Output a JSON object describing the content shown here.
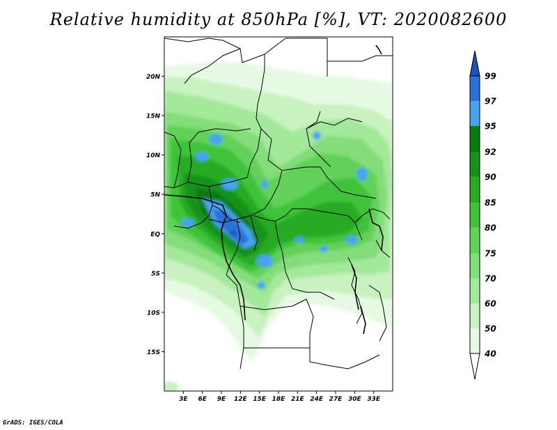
{
  "title": "Relative humidity at 850hPa [%], VT: 2020082600",
  "credit": "GrADS: IGES/COLA",
  "map": {
    "lon_range": [
      0,
      36
    ],
    "lat_range": [
      -20,
      25
    ],
    "lat_ticks": [
      {
        "value": 20,
        "label": "20N"
      },
      {
        "value": 15,
        "label": "15N"
      },
      {
        "value": 10,
        "label": "10N"
      },
      {
        "value": 5,
        "label": "5N"
      },
      {
        "value": 0,
        "label": "EQ"
      },
      {
        "value": -5,
        "label": "5S"
      },
      {
        "value": -10,
        "label": "10S"
      },
      {
        "value": -15,
        "label": "15S"
      }
    ],
    "lon_ticks": [
      {
        "value": 3,
        "label": "3E"
      },
      {
        "value": 6,
        "label": "6E"
      },
      {
        "value": 9,
        "label": "9E"
      },
      {
        "value": 12,
        "label": "12E"
      },
      {
        "value": 15,
        "label": "15E"
      },
      {
        "value": 18,
        "label": "18E"
      },
      {
        "value": 21,
        "label": "21E"
      },
      {
        "value": 24,
        "label": "24E"
      },
      {
        "value": 27,
        "label": "27E"
      },
      {
        "value": 30,
        "label": "30E"
      },
      {
        "value": 33,
        "label": "33E"
      }
    ]
  },
  "colorbar": {
    "levels": [
      "40",
      "50",
      "60",
      "70",
      "75",
      "80",
      "85",
      "90",
      "92",
      "95",
      "97",
      "99"
    ],
    "colors": [
      "#ffffff",
      "#e6fae3",
      "#c8f2c0",
      "#a4e89b",
      "#84dd7a",
      "#62d15a",
      "#40c33a",
      "#27ab24",
      "#15921a",
      "#0b7a10",
      "#4aa3ef",
      "#2a72d6",
      "#1d52b8"
    ]
  }
}
